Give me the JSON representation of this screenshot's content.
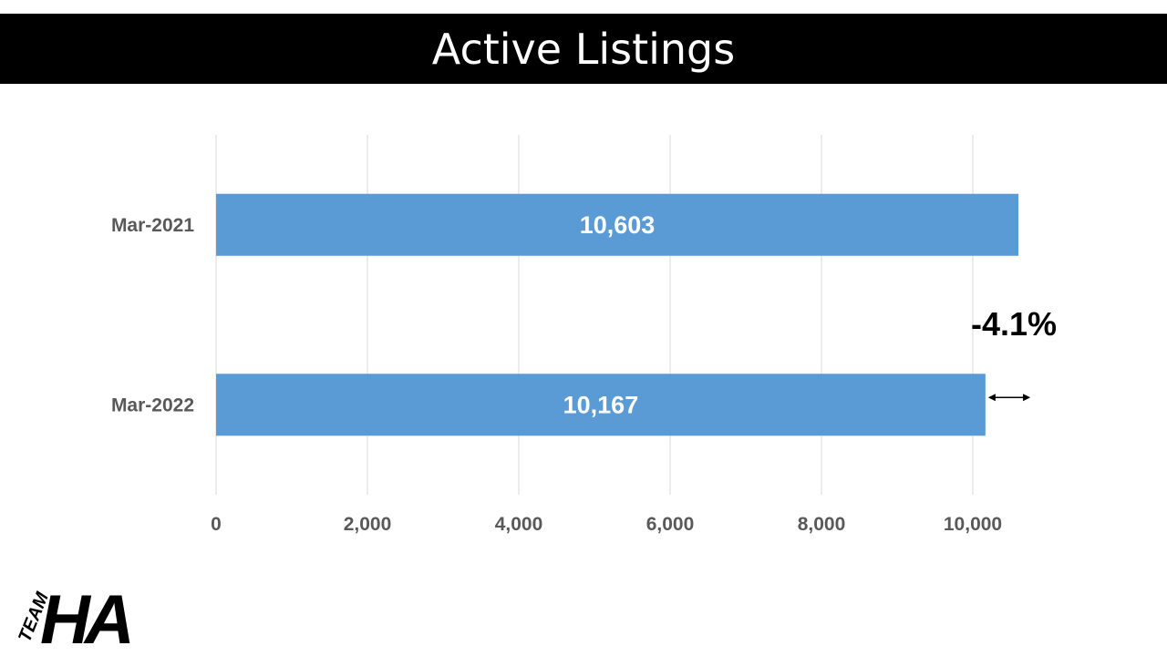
{
  "title": "Active Listings",
  "chart_data": {
    "type": "bar",
    "orientation": "horizontal",
    "categories": [
      "Mar-2021",
      "Mar-2022"
    ],
    "values": [
      10603,
      10167
    ],
    "data_labels": [
      "10,603",
      "10,167"
    ],
    "xlim": [
      0,
      12000
    ],
    "x_ticks": [
      0,
      2000,
      4000,
      6000,
      8000,
      10000
    ],
    "x_tick_labels": [
      "0",
      "2,000",
      "4,000",
      "6,000",
      "8,000",
      "10,000"
    ],
    "grid": "vertical",
    "bar_color": "#5B9BD5",
    "annotation": "-4.1%"
  },
  "logo": {
    "text_small": "TEAM",
    "text_large": "HA"
  }
}
